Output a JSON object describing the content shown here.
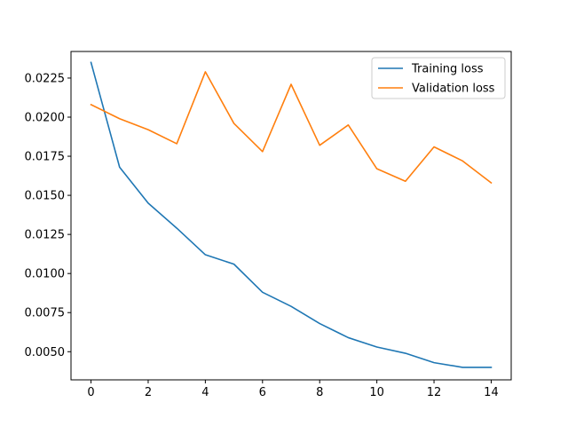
{
  "chart_data": {
    "type": "line",
    "title": "",
    "xlabel": "",
    "ylabel": "",
    "x": [
      0,
      1,
      2,
      3,
      4,
      5,
      6,
      7,
      8,
      9,
      10,
      11,
      12,
      13,
      14
    ],
    "xlim": [
      -0.7,
      14.7
    ],
    "ylim": [
      0.0032,
      0.0242
    ],
    "xticks": [
      0,
      2,
      4,
      6,
      8,
      10,
      12,
      14
    ],
    "xtick_labels": [
      "0",
      "2",
      "4",
      "6",
      "8",
      "10",
      "12",
      "14"
    ],
    "yticks": [
      0.005,
      0.0075,
      0.01,
      0.0125,
      0.015,
      0.0175,
      0.02,
      0.0225
    ],
    "ytick_labels": [
      "0.0050",
      "0.0075",
      "0.0100",
      "0.0125",
      "0.0150",
      "0.0175",
      "0.0200",
      "0.0225"
    ],
    "grid": false,
    "legend_position": "top-right",
    "series": [
      {
        "name": "Training loss",
        "color": "#1f77b4",
        "values": [
          0.0235,
          0.0168,
          0.0145,
          0.0129,
          0.0112,
          0.0106,
          0.0088,
          0.0079,
          0.0068,
          0.0059,
          0.0053,
          0.0049,
          0.0043,
          0.004,
          0.004
        ]
      },
      {
        "name": "Validation loss",
        "color": "#ff7f0e",
        "values": [
          0.0208,
          0.0199,
          0.0192,
          0.0183,
          0.0229,
          0.0196,
          0.0178,
          0.0221,
          0.0182,
          0.0195,
          0.0167,
          0.0159,
          0.0181,
          0.0172,
          0.0158
        ]
      }
    ]
  }
}
